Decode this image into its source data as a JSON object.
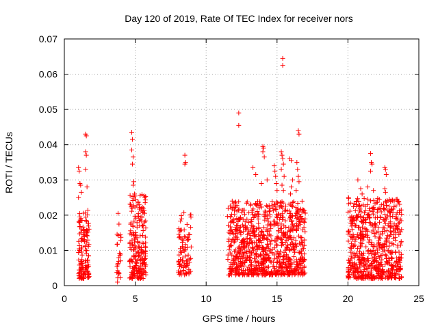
{
  "chart_data": {
    "type": "scatter",
    "title": "Day 120 of 2019, Rate Of TEC Index for receiver nors",
    "xlabel": "GPS time / hours",
    "ylabel": "ROTI / TECUs",
    "xlim": [
      0,
      25
    ],
    "ylim": [
      0,
      0.07
    ],
    "xticks": [
      0,
      5,
      10,
      15,
      20,
      25
    ],
    "xtick_labels": [
      "0",
      "5",
      "10",
      "15",
      "20",
      "25"
    ],
    "yticks": [
      0,
      0.01,
      0.02,
      0.03,
      0.04,
      0.05,
      0.06,
      0.07
    ],
    "ytick_labels": [
      "0",
      "0.01",
      "0.02",
      "0.03",
      "0.04",
      "0.05",
      "0.06",
      "0.07"
    ],
    "grid": true,
    "marker": "+",
    "color": "#ff0000",
    "clusters": [
      {
        "x_range": [
          1.0,
          1.75
        ],
        "y_range": [
          0.002,
          0.022
        ],
        "count": 140
      },
      {
        "x_range": [
          3.7,
          4.0
        ],
        "y_range": [
          0.002,
          0.022
        ],
        "count": 25
      },
      {
        "x_range": [
          4.6,
          5.75
        ],
        "y_range": [
          0.002,
          0.026
        ],
        "count": 220
      },
      {
        "x_range": [
          8.0,
          8.95
        ],
        "y_range": [
          0.003,
          0.021
        ],
        "count": 90
      },
      {
        "x_range": [
          11.5,
          17.0
        ],
        "y_range": [
          0.003,
          0.024
        ],
        "count": 900
      },
      {
        "x_range": [
          20.0,
          23.8
        ],
        "y_range": [
          0.002,
          0.025
        ],
        "count": 650
      }
    ],
    "notable_points": [
      {
        "x": 1.0,
        "y": 0.0335
      },
      {
        "x": 1.05,
        "y": 0.0325
      },
      {
        "x": 1.1,
        "y": 0.029
      },
      {
        "x": 1.15,
        "y": 0.0285
      },
      {
        "x": 1.2,
        "y": 0.0265
      },
      {
        "x": 1.0,
        "y": 0.025
      },
      {
        "x": 1.5,
        "y": 0.043
      },
      {
        "x": 1.55,
        "y": 0.0425
      },
      {
        "x": 1.5,
        "y": 0.038
      },
      {
        "x": 1.55,
        "y": 0.037
      },
      {
        "x": 1.5,
        "y": 0.033
      },
      {
        "x": 1.6,
        "y": 0.028
      },
      {
        "x": 3.75,
        "y": 0.001
      },
      {
        "x": 4.75,
        "y": 0.0435
      },
      {
        "x": 4.8,
        "y": 0.0415
      },
      {
        "x": 4.75,
        "y": 0.0385
      },
      {
        "x": 4.85,
        "y": 0.0365
      },
      {
        "x": 4.8,
        "y": 0.0345
      },
      {
        "x": 4.9,
        "y": 0.0295
      },
      {
        "x": 4.85,
        "y": 0.0285
      },
      {
        "x": 4.95,
        "y": 0.026
      },
      {
        "x": 8.5,
        "y": 0.037
      },
      {
        "x": 8.55,
        "y": 0.035
      },
      {
        "x": 8.5,
        "y": 0.0345
      },
      {
        "x": 12.3,
        "y": 0.049
      },
      {
        "x": 12.3,
        "y": 0.0455
      },
      {
        "x": 13.3,
        "y": 0.0335
      },
      {
        "x": 13.5,
        "y": 0.0315
      },
      {
        "x": 13.9,
        "y": 0.029
      },
      {
        "x": 14.0,
        "y": 0.0395
      },
      {
        "x": 14.05,
        "y": 0.039
      },
      {
        "x": 14.0,
        "y": 0.038
      },
      {
        "x": 14.1,
        "y": 0.0365
      },
      {
        "x": 14.3,
        "y": 0.03
      },
      {
        "x": 14.8,
        "y": 0.034
      },
      {
        "x": 14.85,
        "y": 0.0325
      },
      {
        "x": 14.9,
        "y": 0.031
      },
      {
        "x": 14.95,
        "y": 0.029
      },
      {
        "x": 15.0,
        "y": 0.027
      },
      {
        "x": 15.4,
        "y": 0.0645
      },
      {
        "x": 15.4,
        "y": 0.0625
      },
      {
        "x": 15.3,
        "y": 0.038
      },
      {
        "x": 15.35,
        "y": 0.037
      },
      {
        "x": 15.4,
        "y": 0.036
      },
      {
        "x": 15.45,
        "y": 0.0345
      },
      {
        "x": 15.3,
        "y": 0.033
      },
      {
        "x": 15.5,
        "y": 0.031
      },
      {
        "x": 15.35,
        "y": 0.0285
      },
      {
        "x": 15.45,
        "y": 0.027
      },
      {
        "x": 15.9,
        "y": 0.036
      },
      {
        "x": 16.0,
        "y": 0.0355
      },
      {
        "x": 16.1,
        "y": 0.03
      },
      {
        "x": 16.0,
        "y": 0.028
      },
      {
        "x": 15.95,
        "y": 0.026
      },
      {
        "x": 16.5,
        "y": 0.044
      },
      {
        "x": 16.55,
        "y": 0.043
      },
      {
        "x": 16.4,
        "y": 0.035
      },
      {
        "x": 16.45,
        "y": 0.033
      },
      {
        "x": 16.5,
        "y": 0.031
      },
      {
        "x": 16.55,
        "y": 0.0295
      },
      {
        "x": 16.35,
        "y": 0.027
      },
      {
        "x": 20.7,
        "y": 0.03
      },
      {
        "x": 20.9,
        "y": 0.0275
      },
      {
        "x": 21.0,
        "y": 0.026
      },
      {
        "x": 21.6,
        "y": 0.0375
      },
      {
        "x": 21.65,
        "y": 0.035
      },
      {
        "x": 21.7,
        "y": 0.0345
      },
      {
        "x": 21.6,
        "y": 0.0325
      },
      {
        "x": 21.4,
        "y": 0.028
      },
      {
        "x": 21.8,
        "y": 0.027
      },
      {
        "x": 22.6,
        "y": 0.0335
      },
      {
        "x": 22.65,
        "y": 0.033
      },
      {
        "x": 22.7,
        "y": 0.0315
      },
      {
        "x": 22.6,
        "y": 0.0275
      },
      {
        "x": 22.65,
        "y": 0.0265
      },
      {
        "x": 23.4,
        "y": 0.0245
      },
      {
        "x": 23.5,
        "y": 0.024
      }
    ]
  }
}
